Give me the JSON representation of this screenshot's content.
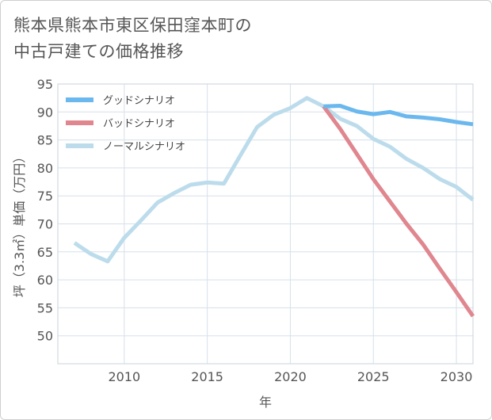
{
  "title_lines": [
    "熊本県熊本市東区保田窪本町の",
    "中古戸建ての価格推移"
  ],
  "chart_data": {
    "type": "line",
    "xlabel": "年",
    "ylabel": "坪（3.3㎡）単価（万円）",
    "xlim": [
      2006,
      2031
    ],
    "ylim": [
      45,
      95
    ],
    "xticks": [
      2010,
      2015,
      2020,
      2025,
      2030
    ],
    "yticks": [
      50,
      55,
      60,
      65,
      70,
      75,
      80,
      85,
      90,
      95
    ],
    "grid": true,
    "legend_position": "top-left",
    "series": [
      {
        "name": "グッドシナリオ",
        "color": "#6bb8ee",
        "x": [
          2022,
          2023,
          2024,
          2025,
          2026,
          2027,
          2028,
          2029,
          2030,
          2031
        ],
        "y": [
          91.0,
          91.1,
          90.1,
          89.6,
          90.0,
          89.2,
          89.0,
          88.7,
          88.2,
          87.8
        ]
      },
      {
        "name": "バッドシナリオ",
        "color": "#e0868f",
        "x": [
          2022,
          2023,
          2024,
          2025,
          2026,
          2027,
          2028,
          2029,
          2030,
          2031
        ],
        "y": [
          91.0,
          87.0,
          82.5,
          78.0,
          74.0,
          70.0,
          66.3,
          62.0,
          57.8,
          53.5
        ]
      },
      {
        "name": "ノーマルシナリオ",
        "color": "#bcdcec",
        "x": [
          2007,
          2008,
          2009,
          2010,
          2011,
          2012,
          2013,
          2014,
          2015,
          2016,
          2017,
          2018,
          2019,
          2020,
          2021,
          2022,
          2023,
          2024,
          2025,
          2026,
          2027,
          2028,
          2029,
          2030,
          2031
        ],
        "y": [
          66.6,
          64.6,
          63.3,
          67.5,
          70.6,
          73.8,
          75.5,
          77.0,
          77.4,
          77.2,
          82.3,
          87.3,
          89.5,
          90.7,
          92.5,
          91.0,
          88.8,
          87.5,
          85.2,
          83.8,
          81.6,
          80.0,
          78.0,
          76.6,
          74.3
        ]
      }
    ]
  }
}
